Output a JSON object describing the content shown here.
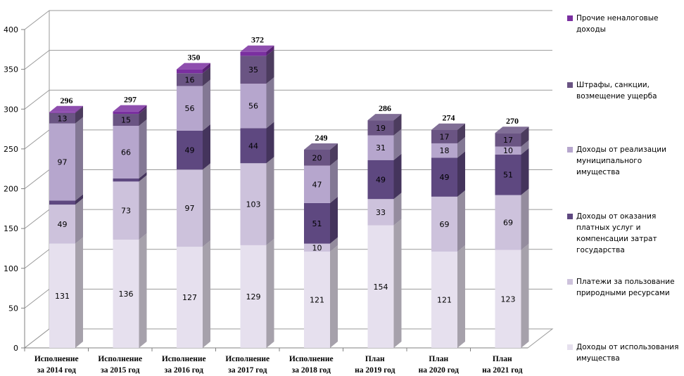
{
  "chart_data": {
    "type": "bar",
    "stacked": true,
    "three_d": true,
    "categories": [
      [
        "Исполнение",
        "за 2014 год"
      ],
      [
        "Исполнение",
        "за 2015 год"
      ],
      [
        "Исполнение",
        "за 2016 год"
      ],
      [
        "Исполнение",
        "за 2017 год"
      ],
      [
        "Исполнение",
        "за 2018 год"
      ],
      [
        "План",
        "на  2019 год"
      ],
      [
        "План",
        "на 2020 год"
      ],
      [
        "План",
        "на  2021 год"
      ]
    ],
    "series": [
      {
        "name": "Доходы от использования имущества",
        "color": "#e6e0ee",
        "label_color": "#000000",
        "values": [
          131,
          136,
          127,
          129,
          121,
          154,
          121,
          123
        ]
      },
      {
        "name": "Платежи за пользование природными ресурсами",
        "color": "#cdc2dc",
        "label_color": "#000000",
        "values": [
          49,
          73,
          97,
          103,
          10,
          33,
          69,
          69
        ]
      },
      {
        "name": "Доходы от оказания платных услуг и компенсации затрат государства",
        "color": "#5e4880",
        "label_color": "#000000",
        "values": [
          5,
          4,
          49,
          44,
          51,
          49,
          49,
          51
        ]
      },
      {
        "name": "Доходы от реализации муниципального имущества",
        "color": "#b6a6cd",
        "label_color": "#000000",
        "values": [
          97,
          66,
          56,
          56,
          47,
          31,
          18,
          10
        ]
      },
      {
        "name": "Штрафы, санкции, возмещение ущерба",
        "color": "#6a5483",
        "label_color": "#000000",
        "values": [
          13,
          15,
          16,
          35,
          20,
          19,
          17,
          17
        ]
      },
      {
        "name": "Прочие неналоговые доходы",
        "color": "#7a2fa0",
        "label_color": "#ffffff",
        "values": [
          1,
          3,
          5,
          5,
          null,
          null,
          null,
          null
        ]
      }
    ],
    "totals": [
      296,
      297,
      350,
      372,
      249,
      286,
      274,
      270
    ],
    "ylim": [
      0,
      400
    ],
    "yticks": [
      0,
      50,
      100,
      150,
      200,
      250,
      300,
      350,
      400
    ],
    "grid": true,
    "legend_position": "right",
    "legend_order": [
      5,
      4,
      3,
      2,
      1,
      0
    ]
  }
}
